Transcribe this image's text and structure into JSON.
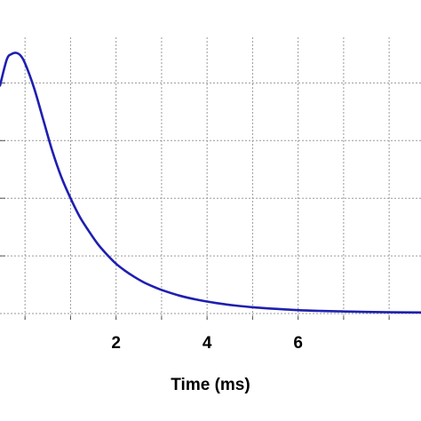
{
  "chart_data": {
    "type": "line",
    "title": "",
    "xlabel": "Time (ms)",
    "ylabel": "",
    "xlim": [
      -0.55,
      8.7
    ],
    "ylim": [
      0,
      1
    ],
    "x_ticks": [
      2,
      4,
      6
    ],
    "x_gridlines": [
      0,
      1,
      2,
      3,
      4,
      5,
      6,
      7,
      8
    ],
    "y_gridlines": [
      0.22,
      0.44,
      0.66,
      0.88
    ],
    "grid": true,
    "legend": "none",
    "series": [
      {
        "color": "#1f1fb0",
        "x": [
          -0.55,
          -0.4,
          -0.3,
          -0.2,
          -0.1,
          0,
          0.2,
          0.4,
          0.6,
          0.8,
          1.0,
          1.2,
          1.4,
          1.6,
          1.8,
          2.0,
          2.2,
          2.4,
          2.6,
          2.8,
          3.0,
          3.4,
          3.8,
          4.2,
          4.6,
          5.0,
          5.5,
          6.0,
          6.5,
          7.0,
          7.5,
          8.0,
          8.7
        ],
        "values": [
          0.87,
          0.97,
          0.99,
          0.995,
          0.985,
          0.955,
          0.86,
          0.74,
          0.62,
          0.52,
          0.44,
          0.37,
          0.315,
          0.265,
          0.225,
          0.19,
          0.163,
          0.14,
          0.12,
          0.104,
          0.09,
          0.068,
          0.052,
          0.04,
          0.031,
          0.024,
          0.018,
          0.013,
          0.01,
          0.008,
          0.006,
          0.005,
          0.004
        ]
      }
    ]
  }
}
